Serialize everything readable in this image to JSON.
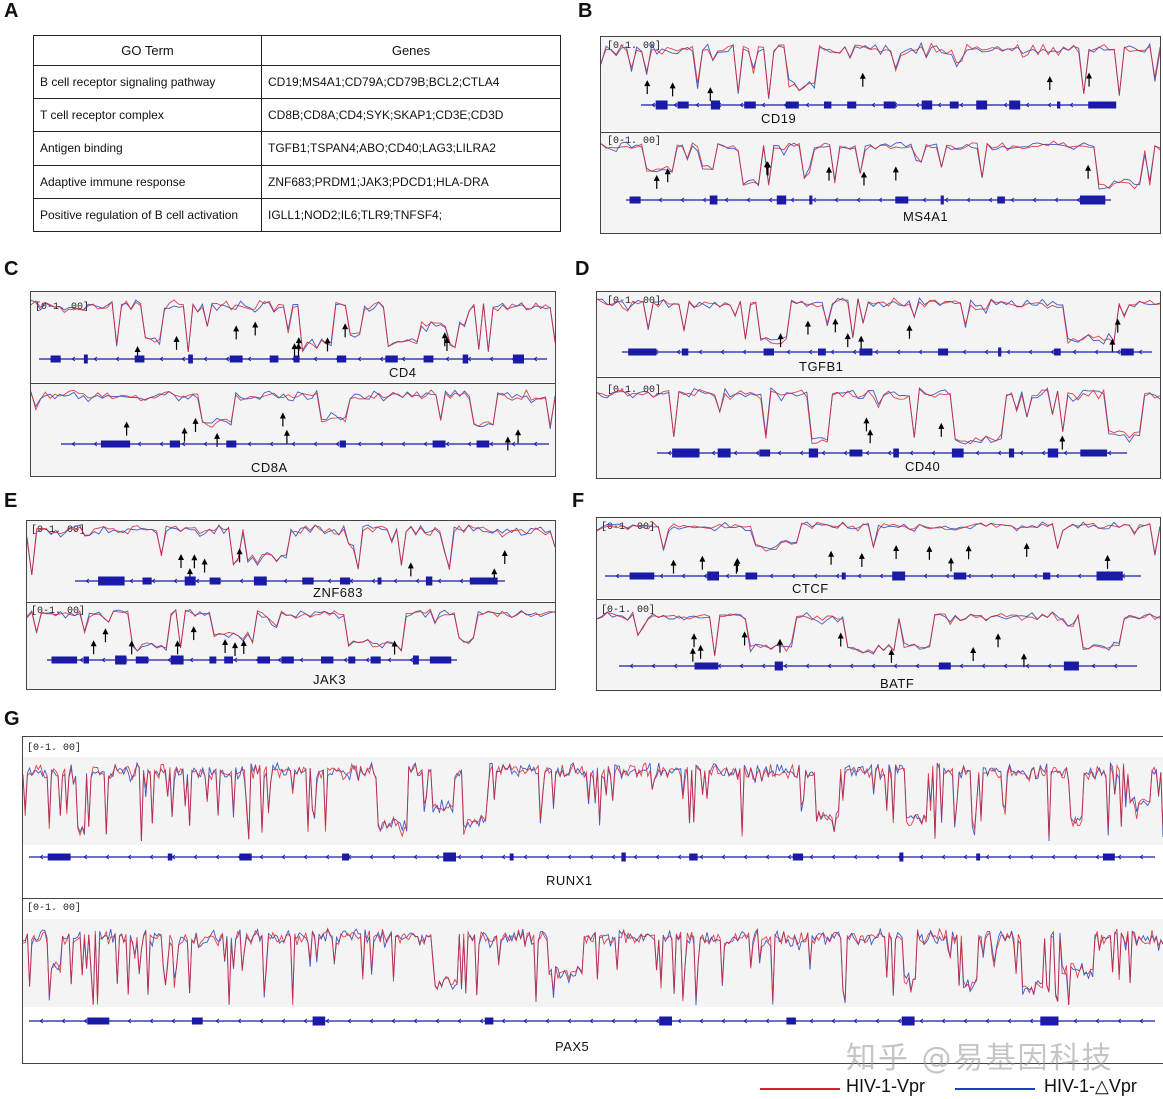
{
  "panel_labels": [
    "A",
    "B",
    "C",
    "D",
    "E",
    "F",
    "G"
  ],
  "go_table": {
    "headers": [
      "GO Term",
      "Genes"
    ],
    "rows": [
      [
        "B cell receptor signaling pathway",
        "CD19;MS4A1;CD79A;CD79B;BCL2;CTLA4"
      ],
      [
        "T cell receptor complex",
        "CD8B;CD8A;CD4;SYK;SKAP1;CD3E;CD3D"
      ],
      [
        "Antigen binding",
        "TGFB1;TSPAN4;ABO;CD40;LAG3;LILRA2"
      ],
      [
        "Adaptive immune response",
        "ZNF683;PRDM1;JAK3;PDCD1;HLA-DRA"
      ],
      [
        "Positive regulation of B cell activation",
        "IGLL1;NOD2;IL6;TLR9;TNFSF4;"
      ]
    ]
  },
  "range_label": "[0-1. 00]",
  "genes": {
    "b1": "CD19",
    "b2": "MS4A1",
    "c1": "CD4",
    "c2": "CD8A",
    "d1": "TGFB1",
    "d2": "CD40",
    "e1": "ZNF683",
    "e2": "JAK3",
    "f1": "CTCF",
    "f2": "BATF",
    "g1": "RUNX1",
    "g2": "PAX5"
  },
  "legend": {
    "vpr": "HIV-1-Vpr",
    "dvpr": "HIV-1-△Vpr",
    "vpr_color": "#d9232e",
    "dvpr_color": "#1f3fbf"
  },
  "watermark": "知乎 @易基因科技",
  "colors": {
    "gene_model": "#1a1aa6"
  }
}
